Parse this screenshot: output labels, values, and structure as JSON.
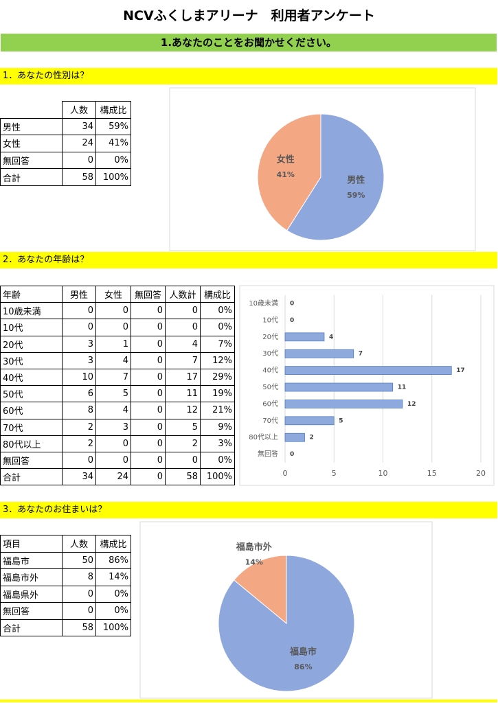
{
  "title": "NCVふくしまアリーナ　利用者アンケート",
  "banner": "1.あなたのことをお聞かせください。",
  "sections": [
    {
      "heading": "1．あなたの性別は？",
      "table": {
        "header": [
          "人数",
          "構成比"
        ],
        "rows": [
          [
            "男性",
            "34",
            "59%"
          ],
          [
            "女性",
            "24",
            "41%"
          ],
          [
            "無回答",
            "0",
            "0%"
          ],
          [
            "合計",
            "58",
            "100%"
          ]
        ]
      }
    },
    {
      "heading": "2．あなたの年齢は？",
      "table": {
        "header": [
          "年齢",
          "男性",
          "女性",
          "無回答",
          "人数計",
          "構成比"
        ],
        "rows": [
          [
            "10歳未満",
            "0",
            "0",
            "0",
            "0",
            "0%"
          ],
          [
            "10代",
            "0",
            "0",
            "0",
            "0",
            "0%"
          ],
          [
            "20代",
            "3",
            "1",
            "0",
            "4",
            "7%"
          ],
          [
            "30代",
            "3",
            "4",
            "0",
            "7",
            "12%"
          ],
          [
            "40代",
            "10",
            "7",
            "0",
            "17",
            "29%"
          ],
          [
            "50代",
            "6",
            "5",
            "0",
            "11",
            "19%"
          ],
          [
            "60代",
            "8",
            "4",
            "0",
            "12",
            "21%"
          ],
          [
            "70代",
            "2",
            "3",
            "0",
            "5",
            "9%"
          ],
          [
            "80代以上",
            "2",
            "0",
            "0",
            "2",
            "3%"
          ],
          [
            "無回答",
            "0",
            "0",
            "0",
            "0",
            "0%"
          ],
          [
            "合計",
            "34",
            "24",
            "0",
            "58",
            "100%"
          ]
        ]
      }
    },
    {
      "heading": "3．あなたのお住まいは？",
      "table": {
        "header": [
          "項目",
          "人数",
          "構成比"
        ],
        "rows": [
          [
            "福島市",
            "50",
            "86%"
          ],
          [
            "福島市外",
            "8",
            "14%"
          ],
          [
            "福島県外",
            "0",
            "0%"
          ],
          [
            "無回答",
            "0",
            "0%"
          ],
          [
            "合計",
            "58",
            "100%"
          ]
        ]
      }
    }
  ],
  "chart_data": [
    {
      "type": "pie",
      "categories": [
        "男性",
        "女性"
      ],
      "values": [
        59,
        41
      ],
      "value_labels": [
        "59%",
        "41%"
      ],
      "colors": [
        "#8ea7dd",
        "#f4a783"
      ]
    },
    {
      "type": "bar",
      "orientation": "horizontal",
      "categories": [
        "10歳未満",
        "10代",
        "20代",
        "30代",
        "40代",
        "50代",
        "60代",
        "70代",
        "80代以上",
        "無回答"
      ],
      "values": [
        0,
        0,
        4,
        7,
        17,
        11,
        12,
        5,
        2,
        0
      ],
      "color": "#8ea9db",
      "xlim": [
        0,
        20
      ],
      "xticks": [
        0,
        5,
        10,
        15,
        20
      ],
      "grid": true
    },
    {
      "type": "pie",
      "categories": [
        "福島市",
        "福島市外"
      ],
      "values": [
        86,
        14
      ],
      "value_labels": [
        "86%",
        "14%"
      ],
      "colors": [
        "#8ea7dd",
        "#f4a783"
      ]
    }
  ]
}
